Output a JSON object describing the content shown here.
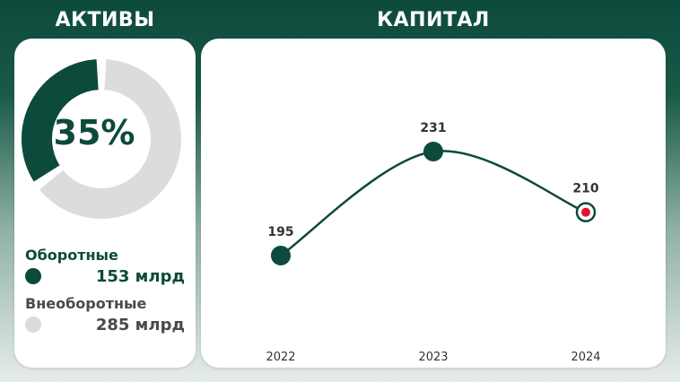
{
  "colors": {
    "primary": "#0c4a3b",
    "secondary": "#dcdcdc",
    "gray_text": "#4a4a4a",
    "accent": "#e0162b"
  },
  "assets": {
    "title": "АКТИВЫ",
    "percent_label": "35%",
    "current": {
      "label": "Оборотные",
      "value": "153 млрд"
    },
    "noncurrent": {
      "label": "Внеоборотные",
      "value": "285 млрд"
    }
  },
  "capital": {
    "title": "КАПИТАЛ"
  },
  "chart_data": [
    {
      "type": "pie",
      "variant": "donut",
      "labels": [
        "Оборотные",
        "Внеоборотные"
      ],
      "values": [
        153,
        285
      ],
      "center_label": "35%"
    },
    {
      "type": "line",
      "categories": [
        "2022",
        "2023",
        "2024"
      ],
      "values": [
        195,
        231,
        210
      ],
      "data_labels": [
        "195",
        "231",
        "210"
      ],
      "highlight_last": true,
      "grid": false,
      "smooth": true
    }
  ]
}
